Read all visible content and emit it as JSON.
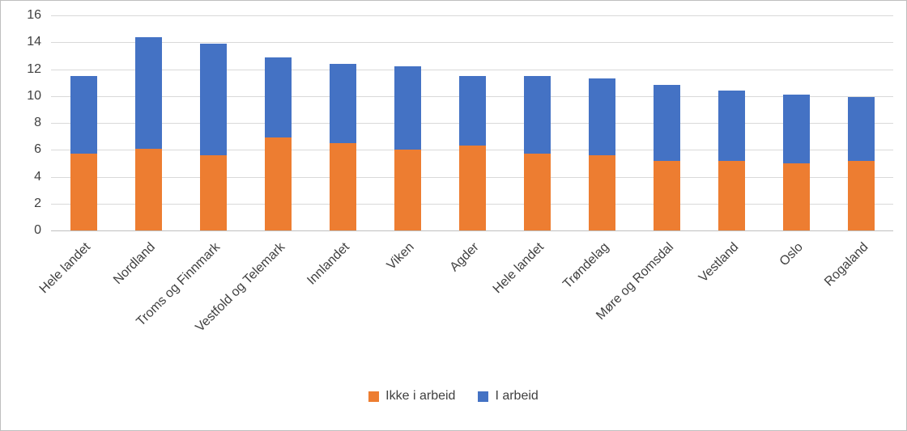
{
  "chart_data": {
    "type": "bar",
    "stacked": true,
    "title": "",
    "xlabel": "",
    "ylabel": "",
    "ylim": [
      0,
      16
    ],
    "ytick_step": 2,
    "grid": true,
    "legend_position": "bottom",
    "categories": [
      "Hele landet",
      "Nordland",
      "Troms og Finnmark",
      "Vestfold og Telemark",
      "Innlandet",
      "Viken",
      "Agder",
      "Hele landet",
      "Trøndelag",
      "Møre og Romsdal",
      "Vestland",
      "Oslo",
      "Rogaland"
    ],
    "series": [
      {
        "name": "Ikke i arbeid",
        "color": "#ED7D31",
        "values": [
          5.7,
          6.1,
          5.6,
          6.9,
          6.5,
          6.0,
          6.3,
          5.7,
          5.6,
          5.2,
          5.2,
          5.0,
          5.2
        ]
      },
      {
        "name": "I arbeid",
        "color": "#4472C4",
        "values": [
          5.8,
          8.3,
          8.3,
          6.0,
          5.9,
          6.2,
          5.2,
          5.8,
          5.7,
          5.6,
          5.2,
          5.1,
          4.7
        ]
      }
    ]
  }
}
